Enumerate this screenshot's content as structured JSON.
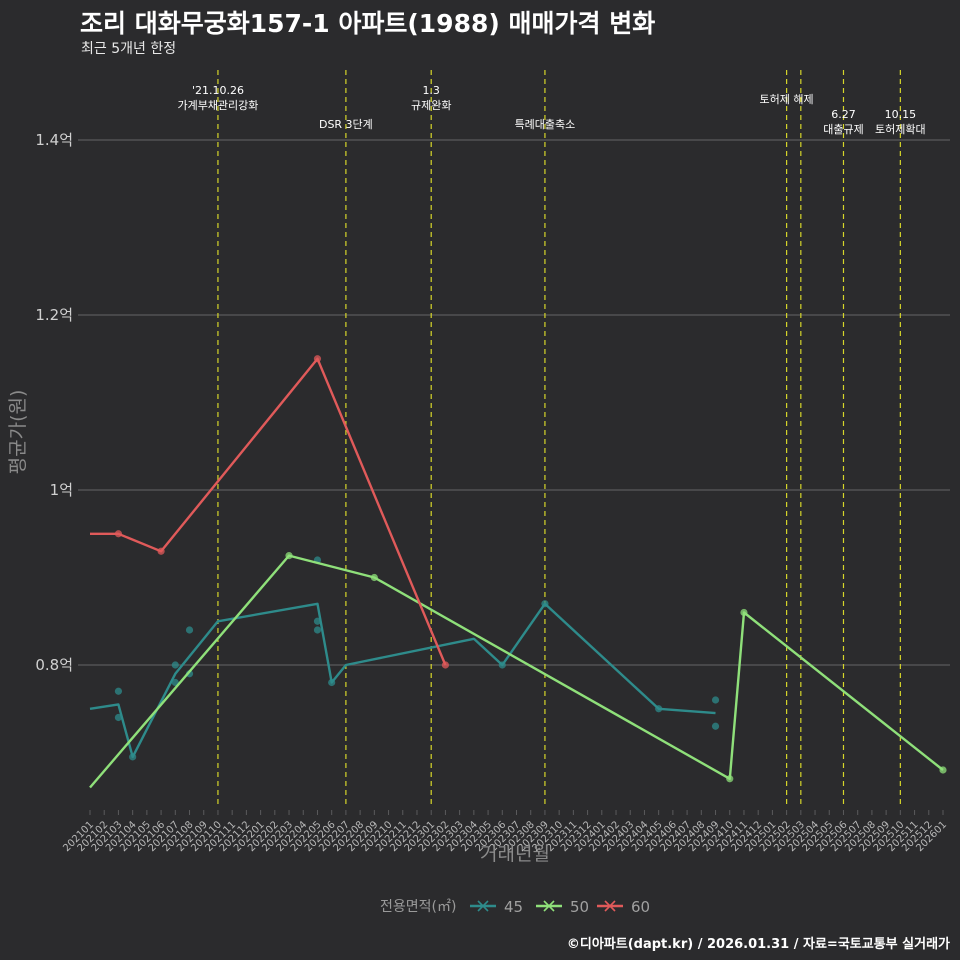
{
  "header": {
    "title": "조리 대화무궁화157-1 아파트(1988) 매매가격 변화",
    "subtitle": "최근 5개년 한정"
  },
  "caption": "©디아파트(dapt.kr) / 2026.01.31 / 자료=국토교통부 실거래가",
  "chart_data": {
    "type": "line",
    "title": "조리 대화무궁화157-1 아파트(1988) 매매가격 변화",
    "subtitle": "최근 5개년 한정",
    "xlabel": "거래년월",
    "ylabel": "평균가(원)",
    "ylim": [
      0.64,
      1.48
    ],
    "yunit": "억",
    "yticks": [
      {
        "value": 0.8,
        "label": "0.8억"
      },
      {
        "value": 1.0,
        "label": "1억"
      },
      {
        "value": 1.2,
        "label": "1.2억"
      },
      {
        "value": 1.4,
        "label": "1.4억"
      }
    ],
    "x": [
      "202101",
      "202102",
      "202103",
      "202104",
      "202105",
      "202106",
      "202107",
      "202108",
      "202109",
      "202110",
      "202111",
      "202112",
      "202201",
      "202202",
      "202203",
      "202204",
      "202205",
      "202206",
      "202207",
      "202208",
      "202209",
      "202210",
      "202211",
      "202212",
      "202301",
      "202302",
      "202303",
      "202304",
      "202305",
      "202306",
      "202307",
      "202308",
      "202309",
      "202310",
      "202311",
      "202312",
      "202401",
      "202402",
      "202403",
      "202404",
      "202405",
      "202406",
      "202407",
      "202408",
      "202409",
      "202410",
      "202411",
      "202412",
      "202501",
      "202502",
      "202503",
      "202504",
      "202505",
      "202506",
      "202507",
      "202508",
      "202509",
      "202510",
      "202511",
      "202512",
      "202601"
    ],
    "legend_title": "전용면적(㎡)",
    "legend_position": "bottom",
    "grid": true,
    "series": [
      {
        "name": "45",
        "color": "#2e8b8b",
        "line": [
          {
            "x": "202101",
            "y": 0.75
          },
          {
            "x": "202103",
            "y": 0.755
          },
          {
            "x": "202104",
            "y": 0.695
          },
          {
            "x": "202107",
            "y": 0.79
          },
          {
            "x": "202110",
            "y": 0.85
          },
          {
            "x": "202205",
            "y": 0.87
          },
          {
            "x": "202206",
            "y": 0.78
          },
          {
            "x": "202207",
            "y": 0.8
          },
          {
            "x": "202304",
            "y": 0.83
          },
          {
            "x": "202306",
            "y": 0.8
          },
          {
            "x": "202309",
            "y": 0.87
          },
          {
            "x": "202405",
            "y": 0.75
          },
          {
            "x": "202409",
            "y": 0.745
          }
        ],
        "points": [
          {
            "x": "202103",
            "y": 0.77
          },
          {
            "x": "202103",
            "y": 0.74
          },
          {
            "x": "202104",
            "y": 0.695
          },
          {
            "x": "202107",
            "y": 0.8
          },
          {
            "x": "202107",
            "y": 0.78
          },
          {
            "x": "202108",
            "y": 0.84
          },
          {
            "x": "202108",
            "y": 0.79
          },
          {
            "x": "202205",
            "y": 0.92
          },
          {
            "x": "202205",
            "y": 0.85
          },
          {
            "x": "202205",
            "y": 0.84
          },
          {
            "x": "202206",
            "y": 0.78
          },
          {
            "x": "202306",
            "y": 0.8
          },
          {
            "x": "202309",
            "y": 0.87
          },
          {
            "x": "202405",
            "y": 0.75
          },
          {
            "x": "202409",
            "y": 0.76
          },
          {
            "x": "202409",
            "y": 0.73
          }
        ]
      },
      {
        "name": "50",
        "color": "#8fe07a",
        "line": [
          {
            "x": "202101",
            "y": 0.66
          },
          {
            "x": "202203",
            "y": 0.925
          },
          {
            "x": "202209",
            "y": 0.9
          },
          {
            "x": "202410",
            "y": 0.67
          },
          {
            "x": "202411",
            "y": 0.86
          },
          {
            "x": "202601",
            "y": 0.68
          }
        ],
        "points": [
          {
            "x": "202203",
            "y": 0.925
          },
          {
            "x": "202209",
            "y": 0.9
          },
          {
            "x": "202410",
            "y": 0.67
          },
          {
            "x": "202411",
            "y": 0.86
          },
          {
            "x": "202601",
            "y": 0.68
          }
        ]
      },
      {
        "name": "60",
        "color": "#e05a5a",
        "line": [
          {
            "x": "202101",
            "y": 0.95
          },
          {
            "x": "202103",
            "y": 0.95
          },
          {
            "x": "202106",
            "y": 0.93
          },
          {
            "x": "202205",
            "y": 1.15
          },
          {
            "x": "202302",
            "y": 0.8
          }
        ],
        "points": [
          {
            "x": "202103",
            "y": 0.95
          },
          {
            "x": "202106",
            "y": 0.93
          },
          {
            "x": "202205",
            "y": 1.15
          },
          {
            "x": "202302",
            "y": 0.8
          }
        ]
      }
    ],
    "events": [
      {
        "x": "202110",
        "lines": [
          "'21.10.26",
          "가계부채관리강화"
        ],
        "row": "top"
      },
      {
        "x": "202207",
        "lines": [
          "DSR 3단계"
        ],
        "row": "low"
      },
      {
        "x": "202301",
        "lines": [
          "1.3",
          "규제완화"
        ],
        "row": "top"
      },
      {
        "x": "202309",
        "lines": [
          "특례대출축소"
        ],
        "row": "low"
      },
      {
        "x": "202502",
        "lines": [
          "토허제 해제"
        ],
        "row": "mid"
      },
      {
        "x": "202503",
        "lines": [],
        "row": "mid"
      },
      {
        "x": "202506",
        "lines": [
          "6.27",
          "대출규제"
        ],
        "row": "low2"
      },
      {
        "x": "202510",
        "lines": [
          "10.15",
          "토허제확대"
        ],
        "row": "low2"
      }
    ]
  }
}
